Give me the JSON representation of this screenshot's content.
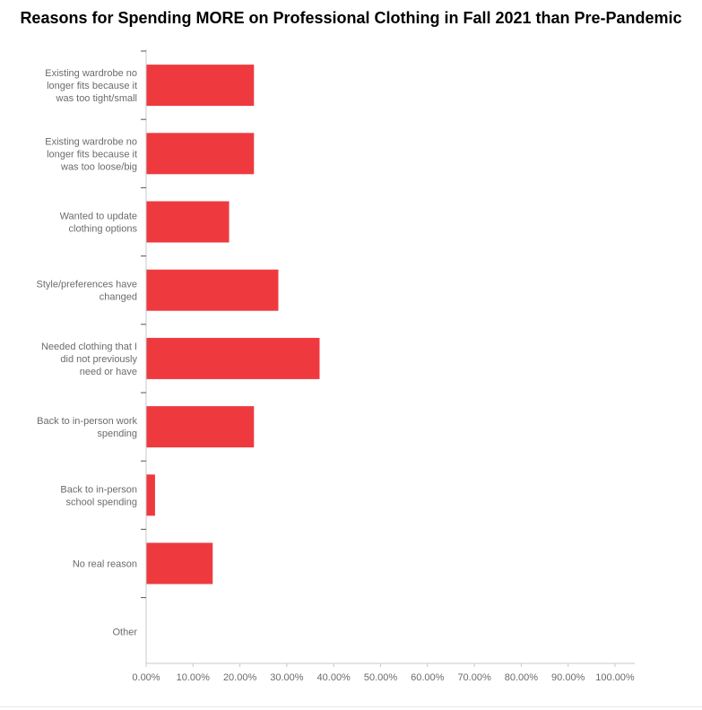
{
  "chart_data": {
    "type": "bar",
    "orientation": "horizontal",
    "title": "Reasons for Spending MORE on Professional Clothing in Fall 2021 than Pre-Pandemic",
    "categories": [
      "Existing wardrobe no longer fits because it was too tight/small",
      "Existing wardrobe no longer fits because it was too loose/big",
      "Wanted to update clothing options",
      "Style/preferences have changed",
      "Needed clothing that I did not previously need or have",
      "Back to in-person work spending",
      "Back to in-person school spending",
      "No real reason",
      "Other"
    ],
    "category_lines": [
      [
        "Existing wardrobe no",
        "longer fits because it",
        "was too tight/small"
      ],
      [
        "Existing wardrobe no",
        "longer fits because it",
        "was too loose/big"
      ],
      [
        "Wanted to update",
        "clothing options"
      ],
      [
        "Style/preferences have",
        "changed"
      ],
      [
        "Needed clothing that I",
        "did not previously",
        "need or have"
      ],
      [
        "Back to in-person work",
        "spending"
      ],
      [
        "Back to in-person",
        "school spending"
      ],
      [
        "No real reason"
      ],
      [
        "Other"
      ]
    ],
    "values": [
      22.9,
      22.9,
      17.6,
      28.1,
      36.9,
      22.9,
      1.8,
      14.1,
      0
    ],
    "xlim": [
      0,
      100
    ],
    "x_ticks": [
      "0.00%",
      "10.00%",
      "20.00%",
      "30.00%",
      "40.00%",
      "50.00%",
      "60.00%",
      "70.00%",
      "80.00%",
      "90.00%",
      "100.00%"
    ],
    "bar_color": "#ee3a3f",
    "axis_color": "#c8c8c8",
    "label_color": "#6b6b6b",
    "grid": false
  }
}
